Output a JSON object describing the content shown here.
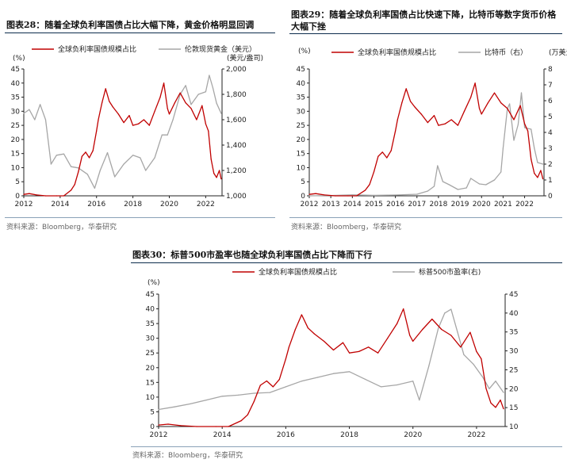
{
  "colors": {
    "red": "#c00000",
    "gray": "#a6a6a6",
    "rule": "#0c2c4c",
    "axis": "#222222"
  },
  "charts": [
    {
      "title": "图表28：随着全球负利率国债占比大幅下降，黄金价格明显回调",
      "source": "资料来源：Bloomberg，华泰研究"
    },
    {
      "title_line1": "图表29：随着全球负利率国债占比快速下降，比特币等数字货币价格",
      "title_line2": "大幅下挫",
      "source": "资料来源：Bloomberg，华泰研究"
    },
    {
      "title": "图表30：标普500市盈率也随全球负利率国债占比下降而下行",
      "source": "资料来源：Bloomberg，华泰研究"
    }
  ],
  "chart_data": [
    {
      "type": "line",
      "title": "随着全球负利率国债占比大幅下降，黄金价格明显回调",
      "left_unit": "(%)",
      "right_unit": "(美元/盎司)",
      "xlim": [
        2012,
        2022.9
      ],
      "x_ticks": [
        "2012",
        "2014",
        "2016",
        "2018",
        "2020",
        "2022"
      ],
      "ylim_left": [
        0,
        45
      ],
      "y_ticks_left": [
        "0",
        "5",
        "10",
        "15",
        "20",
        "25",
        "30",
        "35",
        "40",
        "45"
      ],
      "ylim_right": [
        1000,
        2000
      ],
      "y_ticks_right": [
        "1,000",
        "1,200",
        "1,400",
        "1,600",
        "1,800",
        "2,000"
      ],
      "series": [
        {
          "name": "全球负利率国债规模占比",
          "axis": "left",
          "color_key": "red",
          "x": [
            2012.0,
            2012.3,
            2012.7,
            2013.2,
            2013.8,
            2014.2,
            2014.6,
            2014.8,
            2015.0,
            2015.2,
            2015.4,
            2015.6,
            2015.8,
            2016.0,
            2016.1,
            2016.3,
            2016.5,
            2016.7,
            2016.9,
            2017.2,
            2017.5,
            2017.8,
            2018.0,
            2018.3,
            2018.6,
            2018.9,
            2019.2,
            2019.5,
            2019.7,
            2019.9,
            2020.0,
            2020.3,
            2020.6,
            2020.9,
            2021.2,
            2021.5,
            2021.8,
            2022.0,
            2022.15,
            2022.3,
            2022.45,
            2022.6,
            2022.75,
            2022.85
          ],
          "values": [
            0.5,
            0.8,
            0.3,
            0.0,
            0.0,
            0.0,
            2.0,
            4.0,
            8.5,
            14.0,
            15.5,
            13.5,
            16.0,
            23.0,
            27.0,
            33.0,
            38.0,
            33.5,
            31.5,
            29.0,
            26.0,
            28.5,
            25.0,
            25.5,
            27.0,
            25.0,
            30.0,
            35.0,
            40.0,
            31.0,
            29.0,
            33.0,
            36.5,
            33.0,
            31.0,
            27.0,
            32.0,
            25.5,
            23.0,
            13.0,
            8.0,
            6.5,
            9.0,
            6.0
          ]
        },
        {
          "name": "伦敦现货黄金（美元）",
          "axis": "right",
          "color_key": "gray",
          "x": [
            2012.0,
            2012.3,
            2012.6,
            2012.9,
            2013.2,
            2013.5,
            2013.8,
            2014.2,
            2014.6,
            2015.0,
            2015.5,
            2015.9,
            2016.2,
            2016.6,
            2017.0,
            2017.5,
            2018.0,
            2018.4,
            2018.7,
            2019.2,
            2019.6,
            2019.9,
            2020.2,
            2020.6,
            2020.9,
            2021.2,
            2021.6,
            2022.0,
            2022.2,
            2022.4,
            2022.6,
            2022.85
          ],
          "values": [
            1650,
            1680,
            1600,
            1720,
            1600,
            1250,
            1320,
            1330,
            1230,
            1220,
            1170,
            1060,
            1200,
            1340,
            1150,
            1250,
            1320,
            1300,
            1200,
            1300,
            1480,
            1480,
            1600,
            1800,
            1870,
            1720,
            1800,
            1820,
            1950,
            1850,
            1730,
            1650
          ]
        }
      ],
      "legend": [
        "全球负利率国债规模占比",
        "伦敦现货黄金（美元）"
      ]
    },
    {
      "type": "line",
      "title": "随着全球负利率国债占比快速下降，比特币等数字货币价格大幅下挫",
      "left_unit": "(%)",
      "right_unit": "(万美元)",
      "xlim": [
        2012,
        2022.9
      ],
      "x_ticks": [
        "2012",
        "2013",
        "2014",
        "2015",
        "2016",
        "2017",
        "2018",
        "2019",
        "2020",
        "2021",
        "2022"
      ],
      "ylim_left": [
        0,
        45
      ],
      "y_ticks_left": [
        "0",
        "5",
        "10",
        "15",
        "20",
        "25",
        "30",
        "35",
        "40",
        "45"
      ],
      "ylim_right": [
        0,
        8
      ],
      "y_ticks_right": [
        "0",
        "1",
        "2",
        "3",
        "4",
        "5",
        "6",
        "7",
        "8"
      ],
      "series": [
        {
          "name": "全球负利率国债规模占比",
          "axis": "left",
          "color_key": "red",
          "x": [
            2012.0,
            2012.3,
            2012.7,
            2013.2,
            2013.8,
            2014.2,
            2014.6,
            2014.8,
            2015.0,
            2015.2,
            2015.4,
            2015.6,
            2015.8,
            2016.0,
            2016.1,
            2016.3,
            2016.5,
            2016.7,
            2016.9,
            2017.2,
            2017.5,
            2017.8,
            2018.0,
            2018.3,
            2018.6,
            2018.9,
            2019.2,
            2019.5,
            2019.7,
            2019.9,
            2020.0,
            2020.3,
            2020.6,
            2020.9,
            2021.2,
            2021.5,
            2021.8,
            2022.0,
            2022.15,
            2022.3,
            2022.45,
            2022.6,
            2022.75,
            2022.85
          ],
          "values": [
            0.5,
            0.8,
            0.3,
            0.0,
            0.0,
            0.0,
            2.0,
            4.0,
            8.5,
            14.0,
            15.5,
            13.5,
            16.0,
            23.0,
            27.0,
            33.0,
            38.0,
            33.5,
            31.5,
            29.0,
            26.0,
            28.5,
            25.0,
            25.5,
            27.0,
            25.0,
            30.0,
            35.0,
            40.0,
            31.0,
            29.0,
            33.0,
            36.5,
            33.0,
            31.0,
            27.0,
            32.0,
            25.5,
            23.0,
            13.0,
            8.0,
            6.5,
            9.0,
            6.0
          ]
        },
        {
          "name": "比特币（右）",
          "axis": "right",
          "color_key": "gray",
          "x": [
            2012.0,
            2013.0,
            2014.0,
            2015.0,
            2016.0,
            2017.0,
            2017.5,
            2017.8,
            2017.96,
            2018.2,
            2018.5,
            2018.9,
            2019.3,
            2019.5,
            2019.9,
            2020.2,
            2020.6,
            2020.9,
            2021.0,
            2021.2,
            2021.3,
            2021.5,
            2021.7,
            2021.85,
            2022.0,
            2022.3,
            2022.45,
            2022.6,
            2022.85
          ],
          "values": [
            0.0,
            0.02,
            0.06,
            0.03,
            0.05,
            0.1,
            0.3,
            0.6,
            1.9,
            0.9,
            0.7,
            0.4,
            0.5,
            1.1,
            0.75,
            0.7,
            1.0,
            1.5,
            3.0,
            5.5,
            5.8,
            3.5,
            4.5,
            6.5,
            4.3,
            4.2,
            3.0,
            2.1,
            2.0
          ]
        }
      ],
      "legend": [
        "全球负利率国债规模占比",
        "比特币（右）"
      ]
    },
    {
      "type": "line",
      "title": "标普500市盈率也随全球负利率国债占比下降而下行",
      "left_unit": "(%)",
      "right_unit": "",
      "xlim": [
        2012,
        2022.9
      ],
      "x_ticks": [
        "2012",
        "2014",
        "2016",
        "2018",
        "2020",
        "2022"
      ],
      "ylim_left": [
        0,
        45
      ],
      "y_ticks_left": [
        "0",
        "5",
        "10",
        "15",
        "20",
        "25",
        "30",
        "35",
        "40",
        "45"
      ],
      "ylim_right": [
        10,
        45
      ],
      "y_ticks_right": [
        "10",
        "15",
        "20",
        "25",
        "30",
        "35",
        "40",
        "45"
      ],
      "series": [
        {
          "name": "全球负利率国债规模占比",
          "axis": "left",
          "color_key": "red",
          "x": [
            2012.0,
            2012.3,
            2012.7,
            2013.2,
            2013.8,
            2014.2,
            2014.6,
            2014.8,
            2015.0,
            2015.2,
            2015.4,
            2015.6,
            2015.8,
            2016.0,
            2016.1,
            2016.3,
            2016.5,
            2016.7,
            2016.9,
            2017.2,
            2017.5,
            2017.8,
            2018.0,
            2018.3,
            2018.6,
            2018.9,
            2019.2,
            2019.5,
            2019.7,
            2019.9,
            2020.0,
            2020.3,
            2020.6,
            2020.9,
            2021.2,
            2021.5,
            2021.8,
            2022.0,
            2022.15,
            2022.3,
            2022.45,
            2022.6,
            2022.75,
            2022.85
          ],
          "values": [
            0.5,
            0.8,
            0.3,
            0.0,
            0.0,
            0.0,
            2.0,
            4.0,
            8.5,
            14.0,
            15.5,
            13.5,
            16.0,
            23.0,
            27.0,
            33.0,
            38.0,
            33.5,
            31.5,
            29.0,
            26.0,
            28.5,
            25.0,
            25.5,
            27.0,
            25.0,
            30.0,
            35.0,
            40.0,
            31.0,
            29.0,
            33.0,
            36.5,
            33.0,
            31.0,
            27.0,
            32.0,
            25.5,
            23.0,
            13.0,
            8.0,
            6.5,
            9.0,
            6.0
          ]
        },
        {
          "name": "标普500市盈率(右)",
          "axis": "right",
          "color_key": "gray",
          "x": [
            2012.0,
            2012.5,
            2013.0,
            2013.5,
            2014.0,
            2014.5,
            2015.0,
            2015.5,
            2016.0,
            2016.5,
            2017.0,
            2017.5,
            2018.0,
            2018.5,
            2019.0,
            2019.5,
            2020.0,
            2020.2,
            2020.5,
            2020.8,
            2021.0,
            2021.2,
            2021.4,
            2021.6,
            2021.9,
            2022.2,
            2022.4,
            2022.6,
            2022.85
          ],
          "values": [
            14.5,
            15.2,
            16.0,
            17.0,
            18.0,
            18.3,
            18.8,
            19.0,
            20.5,
            22.0,
            23.0,
            24.0,
            24.5,
            22.5,
            20.5,
            21.0,
            22.0,
            17.0,
            26.0,
            36.0,
            40.0,
            41.0,
            35.0,
            29.0,
            26.5,
            23.0,
            20.0,
            22.0,
            19.0
          ]
        }
      ],
      "legend": [
        "全球负利率国债规模占比",
        "标普500市盈率(右)"
      ]
    }
  ]
}
